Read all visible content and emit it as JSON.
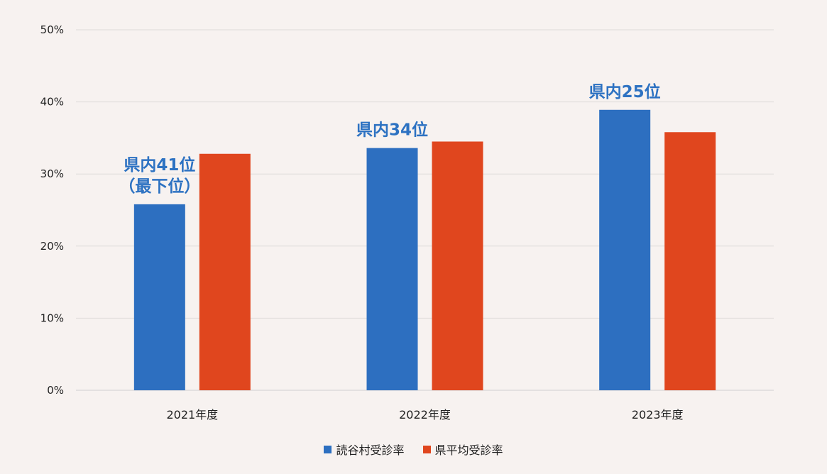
{
  "chart_data": {
    "type": "bar",
    "title": "",
    "xlabel": "",
    "ylabel": "",
    "ylim": [
      0,
      50
    ],
    "grid": true,
    "y_ticks": [
      "0%",
      "10%",
      "20%",
      "30%",
      "40%",
      "50%"
    ],
    "y_tick_values": [
      0,
      10,
      20,
      30,
      40,
      50
    ],
    "categories": [
      "2021年度",
      "2022年度",
      "2023年度"
    ],
    "series": [
      {
        "name": "読谷村受診率",
        "color": "#2d6fc0",
        "values": [
          25.8,
          33.6,
          38.9
        ]
      },
      {
        "name": "県平均受診率",
        "color": "#e0461e",
        "values": [
          32.8,
          34.5,
          35.8
        ]
      }
    ],
    "annotations": [
      {
        "category_index": 0,
        "lines": [
          "県内41位",
          "（最下位）"
        ]
      },
      {
        "category_index": 1,
        "lines": [
          "県内34位"
        ]
      },
      {
        "category_index": 2,
        "lines": [
          "県内25位"
        ]
      }
    ],
    "legend_position": "bottom-center"
  }
}
